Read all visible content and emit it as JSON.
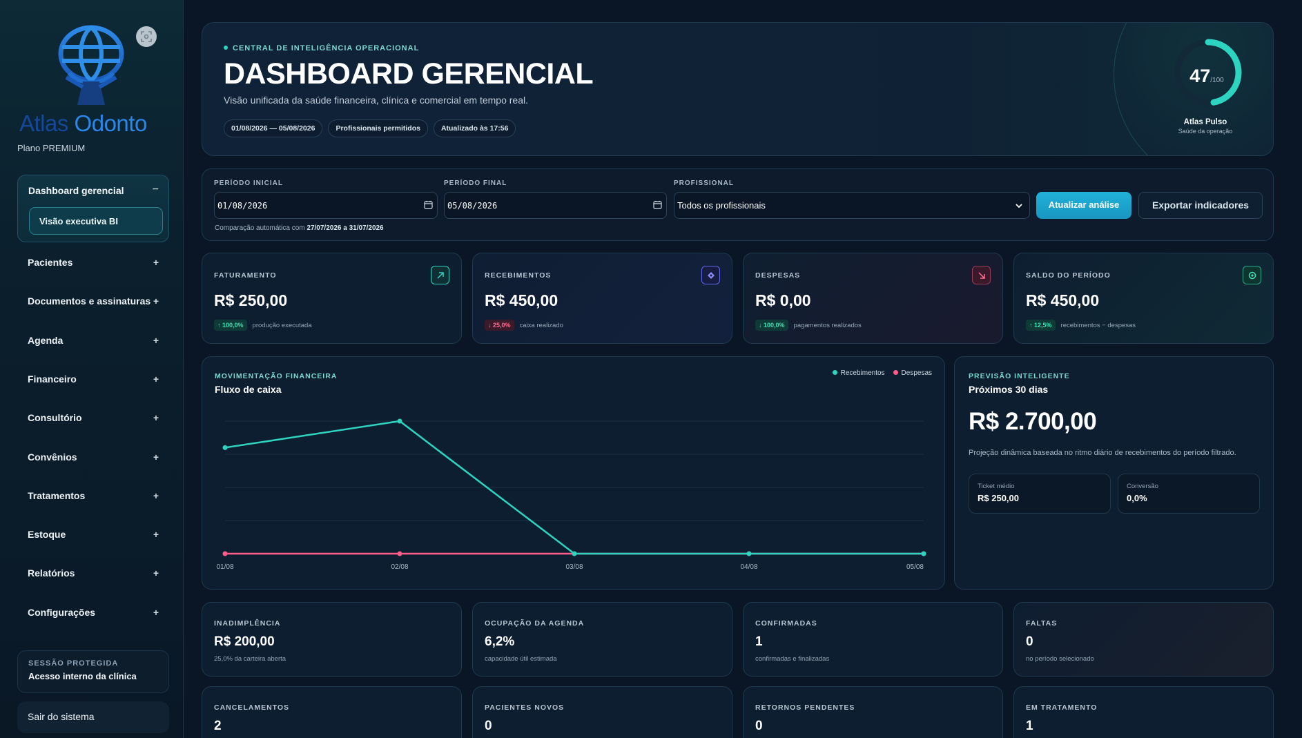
{
  "sidebar": {
    "logo_text_left": "Atlas",
    "logo_text_right": "Odonto",
    "plan": "Plano PREMIUM",
    "group_label": "Dashboard gerencial",
    "group_toggle": "−",
    "active_sub": "Visão executiva BI",
    "items": [
      {
        "label": "Pacientes",
        "toggle": "+"
      },
      {
        "label": "Documentos e assinaturas",
        "toggle": "+"
      },
      {
        "label": "Agenda",
        "toggle": "+"
      },
      {
        "label": "Financeiro",
        "toggle": "+"
      },
      {
        "label": "Consultório",
        "toggle": "+"
      },
      {
        "label": "Convênios",
        "toggle": "+"
      },
      {
        "label": "Tratamentos",
        "toggle": "+"
      },
      {
        "label": "Estoque",
        "toggle": "+"
      },
      {
        "label": "Relatórios",
        "toggle": "+"
      },
      {
        "label": "Configurações",
        "toggle": "+"
      }
    ],
    "session_label": "SESSÃO PROTEGIDA",
    "session_value": "Acesso interno da clínica",
    "logout": "Sair do sistema"
  },
  "hero": {
    "eyebrow": "CENTRAL DE INTELIGÊNCIA OPERACIONAL",
    "title": "DASHBOARD GERENCIAL",
    "subtitle": "Visão unificada da saúde financeira, clínica e comercial em tempo real.",
    "chips": [
      "01/08/2026 — 05/08/2026",
      "Profissionais permitidos",
      "Atualizado às 17:56"
    ],
    "pulse_score": "47",
    "pulse_max": "/100",
    "pulse_fraction": 0.47,
    "pulse_title": "Atlas Pulso",
    "pulse_sub": "Saúde da operação"
  },
  "filters": {
    "start_label": "PERÍODO INICIAL",
    "start_value": "01/08/2026",
    "end_label": "PERÍODO FINAL",
    "end_value": "05/08/2026",
    "pro_label": "PROFISSIONAL",
    "pro_value": "Todos os profissionais",
    "update_button": "Atualizar análise",
    "export_button": "Exportar indicadores",
    "note_prefix": "Comparação automática com ",
    "note_range": "27/07/2026 a 31/07/2026"
  },
  "kpis": [
    {
      "label": "FATURAMENTO",
      "value": "R$ 250,00",
      "badge": "↑ 100,0%",
      "badge_type": "up",
      "foot": "produção executada",
      "icon": "trend-up-icon",
      "icon_color": "#2dd4bf"
    },
    {
      "label": "RECEBIMENTOS",
      "value": "R$ 450,00",
      "badge": "↓ 25,0%",
      "badge_type": "down",
      "foot": "caixa realizado",
      "icon": "diamond-icon",
      "icon_color": "#8b8cf5"
    },
    {
      "label": "DESPESAS",
      "value": "R$ 0,00",
      "badge": "↓ 100,0%",
      "badge_type": "down-g",
      "foot": "pagamentos realizados",
      "icon": "trend-down-icon",
      "icon_color": "#ff6e93"
    },
    {
      "label": "SALDO DO PERÍODO",
      "value": "R$ 450,00",
      "badge": "↑ 12,5%",
      "badge_type": "up",
      "foot": "recebimentos − despesas",
      "icon": "target-icon",
      "icon_color": "#3ee0b4"
    }
  ],
  "chart": {
    "eyebrow": "MOVIMENTAÇÃO FINANCEIRA",
    "title": "Fluxo de caixa"
  },
  "chart_data": {
    "type": "line",
    "title": "Fluxo de caixa",
    "categories": [
      "01/08",
      "02/08",
      "03/08",
      "04/08",
      "05/08"
    ],
    "series": [
      {
        "name": "Recebimentos",
        "values": [
          200,
          250,
          0,
          0,
          0
        ],
        "color": "#2dd4bf"
      },
      {
        "name": "Despesas",
        "values": [
          0,
          0,
          0,
          0,
          0
        ],
        "color": "#ff5c8a"
      }
    ],
    "ylim": [
      0,
      250
    ],
    "grid": true,
    "legend": "top-right"
  },
  "forecast": {
    "eyebrow": "PREVISÃO INTELIGENTE",
    "title": "Próximos 30 dias",
    "value": "R$ 2.700,00",
    "desc": "Projeção dinâmica baseada no ritmo diário de recebimentos do período filtrado.",
    "ticket_label": "Ticket médio",
    "ticket_value": "R$ 250,00",
    "conv_label": "Conversão",
    "conv_value": "0,0%"
  },
  "stats": [
    {
      "label": "INADIMPLÊNCIA",
      "value": "R$ 200,00",
      "sub": "25,0% da carteira aberta"
    },
    {
      "label": "OCUPAÇÃO DA AGENDA",
      "value": "6,2%",
      "sub": "capacidade útil estimada"
    },
    {
      "label": "CONFIRMADAS",
      "value": "1",
      "sub": "confirmadas e finalizadas"
    },
    {
      "label": "FALTAS",
      "value": "0",
      "sub": "no período selecionado"
    },
    {
      "label": "CANCELAMENTOS",
      "value": "2",
      "sub": ""
    },
    {
      "label": "PACIENTES NOVOS",
      "value": "0",
      "sub": ""
    },
    {
      "label": "RETORNOS PENDENTES",
      "value": "0",
      "sub": ""
    },
    {
      "label": "EM TRATAMENTO",
      "value": "1",
      "sub": ""
    }
  ]
}
